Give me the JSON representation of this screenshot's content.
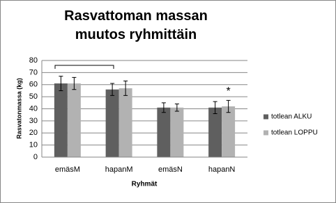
{
  "chart_data": {
    "type": "bar",
    "title": "Rasvattoman massan muutos ryhmittäin",
    "x_label": "Ryhmät",
    "y_label": "Rasvatonmassa  (kg)",
    "categories": [
      "emäsM",
      "hapanM",
      "emäsN",
      "hapanN"
    ],
    "series": [
      {
        "name": "totlean ALKU",
        "color": "#5f5f5f",
        "values": [
          61,
          56,
          41,
          41
        ],
        "errors": [
          6,
          5,
          4,
          5
        ]
      },
      {
        "name": "totlean LOPPU",
        "color": "#b2b2b2",
        "values": [
          61,
          57,
          41,
          42
        ],
        "errors": [
          5,
          6,
          3,
          5
        ]
      }
    ],
    "ylim": [
      0,
      80
    ],
    "yticks": [
      0,
      10,
      20,
      30,
      40,
      50,
      60,
      70,
      80
    ],
    "grid": true,
    "legend": "right",
    "annotations": [
      "*"
    ]
  }
}
